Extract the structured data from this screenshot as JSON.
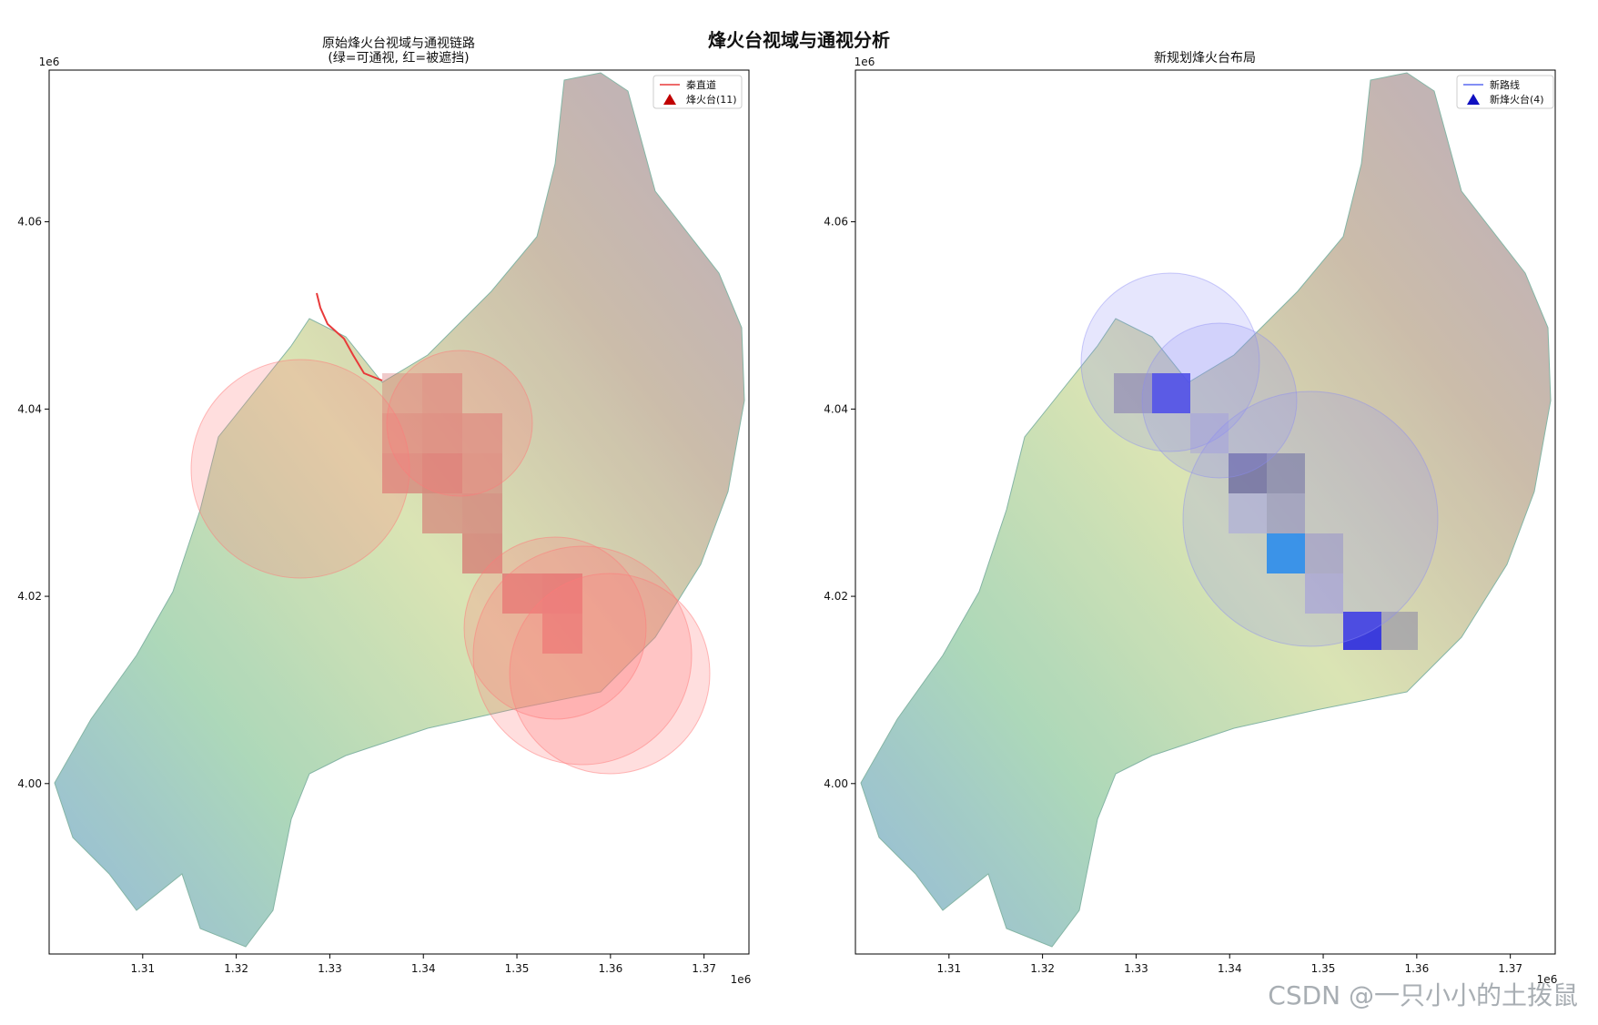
{
  "suptitle": "烽火台视域与通视分析",
  "watermark": "CSDN @一只小小的土拨鼠",
  "chart_data": [
    {
      "type": "map",
      "title": "原始烽火台视域与通视链路",
      "subtitle": "(绿=可通视, 红=被遮挡)",
      "x_ticks": [
        "1.31",
        "1.32",
        "1.33",
        "1.34",
        "1.35",
        "1.36",
        "1.37"
      ],
      "x_tick_values": [
        1.31,
        1.32,
        1.33,
        1.34,
        1.35,
        1.36,
        1.37
      ],
      "y_ticks": [
        "4.00",
        "4.02",
        "4.04",
        "4.06"
      ],
      "y_tick_values": [
        4.0,
        4.02,
        4.04,
        4.06
      ],
      "x_offset": "1e6",
      "y_offset": "1e6",
      "xlim": [
        1.3,
        1.3748
      ],
      "ylim": [
        3.9818,
        4.0762
      ],
      "legend": [
        {
          "label": "秦直道",
          "marker": "line",
          "color": "#e83a3a"
        },
        {
          "label": "烽火台(11)",
          "marker": "triangle",
          "color": "#c00000"
        }
      ],
      "viewshed_color": "#ff6b6b"
    },
    {
      "type": "map",
      "title": "新规划烽火台布局",
      "x_ticks": [
        "1.31",
        "1.32",
        "1.33",
        "1.34",
        "1.35",
        "1.36",
        "1.37"
      ],
      "x_tick_values": [
        1.31,
        1.32,
        1.33,
        1.34,
        1.35,
        1.36,
        1.37
      ],
      "y_ticks": [
        "4.00",
        "4.02",
        "4.04",
        "4.06"
      ],
      "y_tick_values": [
        4.0,
        4.02,
        4.04,
        4.06
      ],
      "x_offset": "1e6",
      "y_offset": "1e6",
      "xlim": [
        1.3,
        1.3748
      ],
      "ylim": [
        3.9818,
        4.0762
      ],
      "legend": [
        {
          "label": "新路线",
          "marker": "line",
          "color": "#5a6af0"
        },
        {
          "label": "新烽火台(4)",
          "marker": "triangle",
          "color": "#1010c0"
        }
      ],
      "viewshed_color": "#8c8cf5"
    }
  ]
}
